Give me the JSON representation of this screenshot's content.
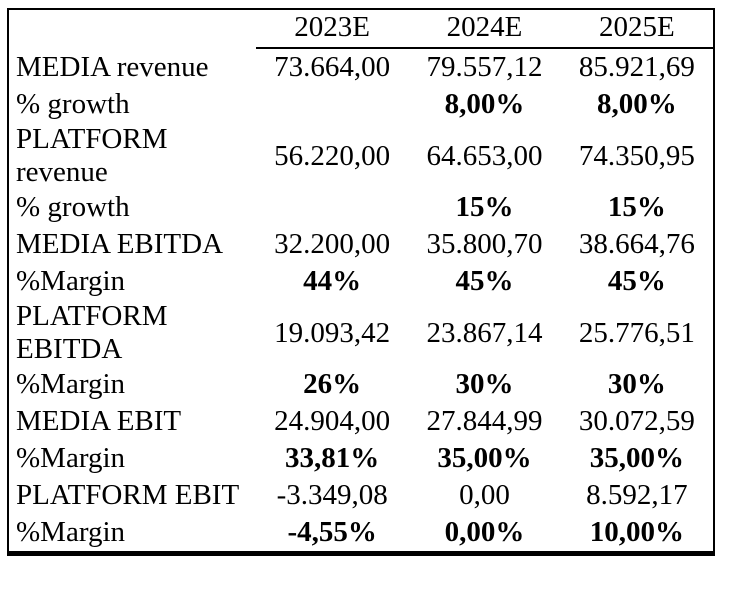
{
  "table": {
    "columns": [
      "",
      "2023E",
      "2024E",
      "2025E"
    ],
    "rows": [
      {
        "label": "MEDIA revenue",
        "values": [
          "73.664,00",
          "79.557,12",
          "85.921,69"
        ],
        "bold_values": false
      },
      {
        "label": "% growth",
        "values": [
          "",
          "8,00%",
          "8,00%"
        ],
        "bold_values": true
      },
      {
        "label": "PLATFORM revenue",
        "values": [
          "56.220,00",
          "64.653,00",
          "74.350,95"
        ],
        "bold_values": false
      },
      {
        "label": "% growth",
        "values": [
          "",
          "15%",
          "15%"
        ],
        "bold_values": true
      },
      {
        "label": "MEDIA EBITDA",
        "values": [
          "32.200,00",
          "35.800,70",
          "38.664,76"
        ],
        "bold_values": false
      },
      {
        "label": "%Margin",
        "values": [
          "44%",
          "45%",
          "45%"
        ],
        "bold_values": true
      },
      {
        "label": "PLATFORM EBITDA",
        "values": [
          "19.093,42",
          "23.867,14",
          "25.776,51"
        ],
        "bold_values": false
      },
      {
        "label": "%Margin",
        "values": [
          "26%",
          "30%",
          "30%"
        ],
        "bold_values": true
      },
      {
        "label": "MEDIA EBIT",
        "values": [
          "24.904,00",
          "27.844,99",
          "30.072,59"
        ],
        "bold_values": false
      },
      {
        "label": "%Margin",
        "values": [
          "33,81%",
          "35,00%",
          "35,00%"
        ],
        "bold_values": true
      },
      {
        "label": "PLATFORM EBIT",
        "values": [
          "-3.349,08",
          "0,00",
          "8.592,17"
        ],
        "bold_values": false
      },
      {
        "label": "%Margin",
        "values": [
          "-4,55%",
          "0,00%",
          "10,00%"
        ],
        "bold_values": true
      }
    ]
  }
}
